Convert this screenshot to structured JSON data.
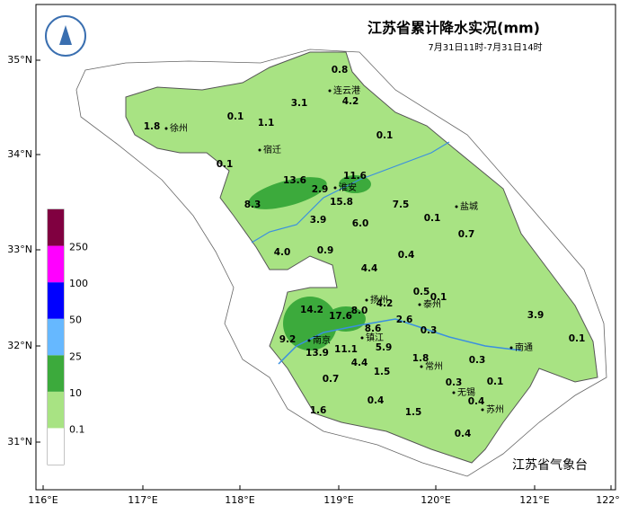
{
  "title": "江苏省累计降水实况(mm)",
  "subtitle": "7月31日11时-7月31日14时",
  "latitude_labels": [
    "35°N",
    "34°N",
    "33°N",
    "32°N",
    "31°N"
  ],
  "longitude_labels": [
    "116°E",
    "117°E",
    "118°E",
    "119°E",
    "120°E",
    "121°E",
    "122°E"
  ],
  "legend": {
    "labels": [
      0.1,
      10,
      25,
      50,
      100,
      250
    ],
    "colors": [
      "#ffffff",
      "#a8e383",
      "#3caa3c",
      "#66b8ff",
      "#0000ff",
      "#ff00ff",
      "#800040"
    ]
  },
  "cities": [
    "连云港",
    "徐州",
    "宿迁",
    "淮安",
    "盐城",
    "扬州",
    "泰州",
    "南京",
    "镇江",
    "常州",
    "南通",
    "无锡",
    "苏州"
  ],
  "rainfall": [
    0.8,
    4.2,
    3.1,
    0.1,
    1.1,
    1.8,
    0.1,
    0.1,
    13.6,
    11.6,
    2.9,
    15.8,
    8.3,
    7.5,
    0.1,
    3.9,
    6.0,
    4.0,
    0.9,
    0.4,
    0.7,
    4.4,
    0.5,
    0.1,
    14.2,
    17.6,
    8.0,
    4.2,
    2.6,
    3.9,
    8.6,
    0.3,
    9.2,
    13.9,
    11.1,
    5.9,
    0.1,
    4.4,
    1.5,
    1.8,
    0.3,
    0.7,
    0.3,
    0.1,
    0.4,
    0.4,
    1.6,
    1.5,
    0.4
  ],
  "footer": "江苏省气象台"
}
